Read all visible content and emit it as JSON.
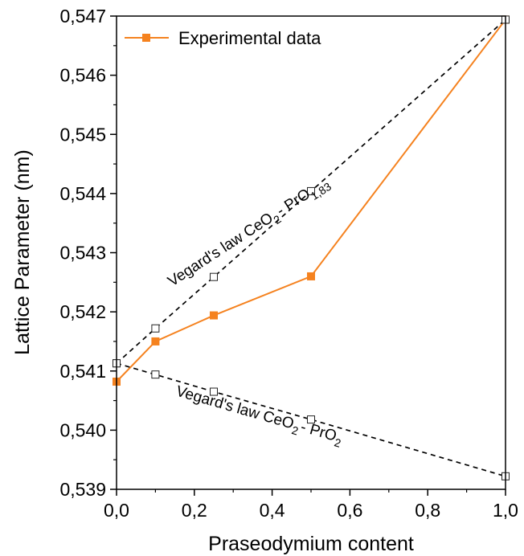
{
  "chart_data": {
    "type": "line",
    "xlabel": "Praseodymium content",
    "ylabel": "Lattice Parameter (nm)",
    "xlim": [
      0.0,
      1.0
    ],
    "ylim": [
      0.539,
      0.547
    ],
    "xticks": [
      "0,0",
      "0,2",
      "0,4",
      "0,6",
      "0,8",
      "1,0"
    ],
    "yticks": [
      "0,539",
      "0,540",
      "0,541",
      "0,542",
      "0,543",
      "0,544",
      "0,545",
      "0,546",
      "0,547"
    ],
    "grid": false,
    "legend_position": "top-left",
    "series": [
      {
        "name": "Experimental data",
        "style": "solid",
        "marker": "filled-square",
        "color": "#f5821f",
        "x": [
          0.0,
          0.1,
          0.25,
          0.5,
          1.0
        ],
        "y": [
          0.54082,
          0.5415,
          0.54194,
          0.5426,
          0.54694
        ]
      },
      {
        "style": "dashed",
        "marker": "open-square",
        "color": "#000000",
        "x": [
          0.0,
          0.1,
          0.25,
          0.5,
          1.0
        ],
        "y": [
          0.54113,
          0.54172,
          0.54259,
          0.54404,
          0.54694
        ]
      },
      {
        "style": "dashed",
        "marker": "open-square",
        "color": "#000000",
        "x": [
          0.0,
          0.1,
          0.25,
          0.5,
          1.0
        ],
        "y": [
          0.54113,
          0.54094,
          0.54065,
          0.54018,
          0.53922
        ]
      }
    ],
    "annotations": {
      "upper": {
        "prefix": "Vegard's law CeO",
        "sub1": "2",
        "mid": "- PrO",
        "sub2": "1,83"
      },
      "lower": {
        "prefix": "Vegard's law CeO",
        "sub1": "2",
        "mid": "- PrO",
        "sub2": "2"
      }
    }
  }
}
